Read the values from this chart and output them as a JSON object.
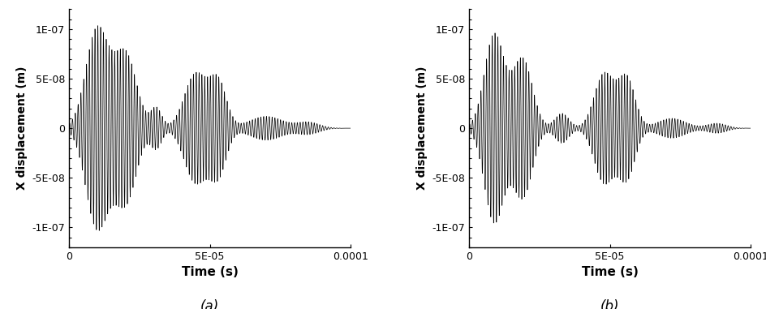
{
  "xlim": [
    0,
    0.0001
  ],
  "ylim": [
    -1.2e-07,
    1.2e-07
  ],
  "xlabel": "Time (s)",
  "ylabel": "X displacement (m)",
  "label_a": "(a)",
  "label_b": "(b)",
  "line_color": "#000000",
  "line_width": 0.5,
  "bg_color": "#ffffff",
  "xlabel_fontsize": 11,
  "ylabel_fontsize": 10,
  "tick_fontsize": 9,
  "caption_fontsize": 12,
  "yticks": [
    -1e-07,
    -5e-08,
    0,
    5e-08,
    1e-07
  ],
  "xticks": [
    0,
    5e-05,
    0.0001
  ],
  "xtick_labels": [
    "0",
    "5E-05",
    "0.0001"
  ],
  "ytick_labels": [
    "-1E-07",
    "-5E-08",
    "0",
    "5E-08",
    "1E-07"
  ]
}
